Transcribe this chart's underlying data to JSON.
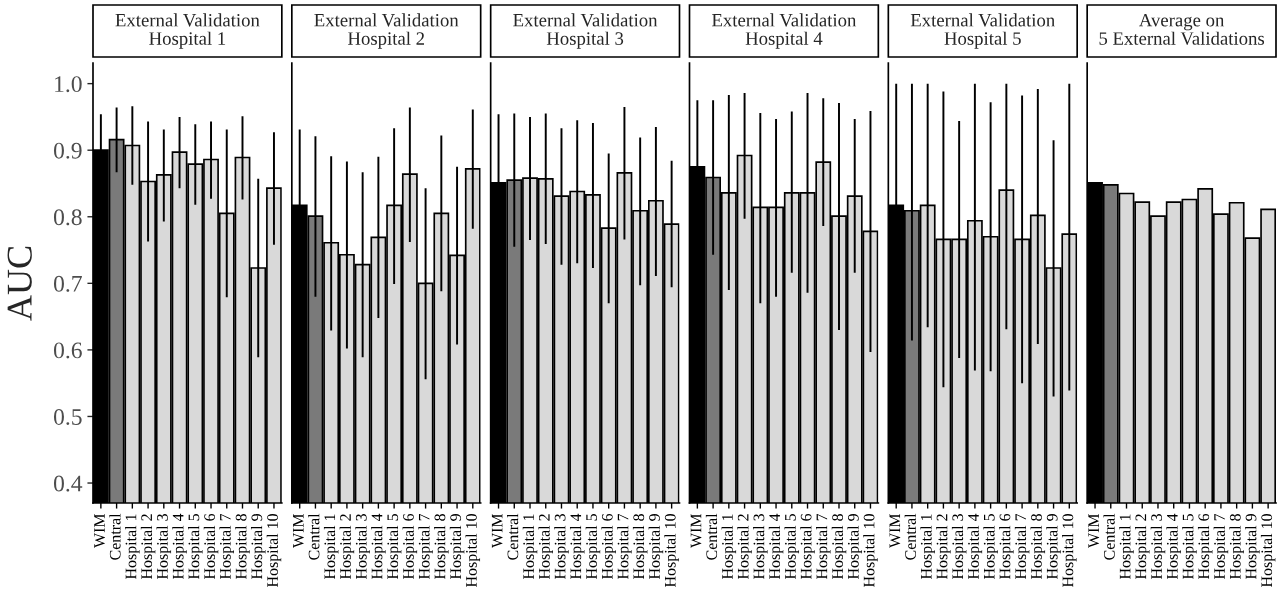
{
  "chart_data": [
    {
      "type": "bar",
      "title": "External Validation\nHospital 1",
      "ylabel": "AUC",
      "categories": [
        "WIM",
        "Central",
        "Hospital 1",
        "Hospital 2",
        "Hospital 3",
        "Hospital 4",
        "Hospital 5",
        "Hospital 6",
        "Hospital 7",
        "Hospital 8",
        "Hospital 9",
        "Hospital 10"
      ],
      "colors": [
        "#000000",
        "#7a7a7a",
        "#d9d9d9",
        "#d9d9d9",
        "#d9d9d9",
        "#d9d9d9",
        "#d9d9d9",
        "#d9d9d9",
        "#d9d9d9",
        "#d9d9d9",
        "#d9d9d9",
        "#d9d9d9"
      ],
      "values": [
        0.9,
        0.916,
        0.907,
        0.853,
        0.863,
        0.897,
        0.879,
        0.886,
        0.805,
        0.889,
        0.723,
        0.843
      ],
      "errors": [
        [
          0.9,
          0.954
        ],
        [
          0.867,
          0.964
        ],
        [
          0.848,
          0.966
        ],
        [
          0.763,
          0.943
        ],
        [
          0.793,
          0.931
        ],
        [
          0.843,
          0.95
        ],
        [
          0.818,
          0.939
        ],
        [
          0.827,
          0.943
        ],
        [
          0.679,
          0.931
        ],
        [
          0.826,
          0.951
        ],
        [
          0.589,
          0.857
        ],
        [
          0.758,
          0.927
        ]
      ],
      "ylim": [
        0.37,
        1.031
      ],
      "yticks": [
        {
          "value": 0.4,
          "label": "0.4"
        },
        {
          "value": 0.5,
          "label": "0.5"
        },
        {
          "value": 0.6,
          "label": "0.6"
        },
        {
          "value": 0.7,
          "label": "0.7"
        },
        {
          "value": 0.8,
          "label": "0.8"
        },
        {
          "value": 0.9,
          "label": "0.9"
        },
        {
          "value": 1.0,
          "label": "1.0"
        }
      ],
      "grid": false,
      "legend": false
    },
    {
      "type": "bar",
      "title": "External Validation\nHospital 2",
      "categories": [
        "WIM",
        "Central",
        "Hospital 1",
        "Hospital 2",
        "Hospital 3",
        "Hospital 4",
        "Hospital 5",
        "Hospital 6",
        "Hospital 7",
        "Hospital 8",
        "Hospital 9",
        "Hospital 10"
      ],
      "colors": [
        "#000000",
        "#7a7a7a",
        "#d9d9d9",
        "#d9d9d9",
        "#d9d9d9",
        "#d9d9d9",
        "#d9d9d9",
        "#d9d9d9",
        "#d9d9d9",
        "#d9d9d9",
        "#d9d9d9",
        "#d9d9d9"
      ],
      "values": [
        0.817,
        0.801,
        0.761,
        0.743,
        0.728,
        0.769,
        0.817,
        0.864,
        0.7,
        0.805,
        0.742,
        0.872
      ],
      "errors": [
        [
          0.817,
          0.931
        ],
        [
          0.68,
          0.921
        ],
        [
          0.629,
          0.891
        ],
        [
          0.602,
          0.883
        ],
        [
          0.589,
          0.867
        ],
        [
          0.648,
          0.89
        ],
        [
          0.699,
          0.933
        ],
        [
          0.762,
          0.964
        ],
        [
          0.556,
          0.843
        ],
        [
          0.688,
          0.922
        ],
        [
          0.608,
          0.875
        ],
        [
          0.782,
          0.961
        ]
      ],
      "ylim": [
        0.37,
        1.031
      ],
      "tick_labels": "x",
      "grid": false,
      "legend": false
    },
    {
      "type": "bar",
      "title": "External Validation\nHospital 3",
      "categories": [
        "WIM",
        "Central",
        "Hospital 1",
        "Hospital 2",
        "Hospital 3",
        "Hospital 4",
        "Hospital 5",
        "Hospital 6",
        "Hospital 7",
        "Hospital 8",
        "Hospital 9",
        "Hospital 10"
      ],
      "colors": [
        "#000000",
        "#7a7a7a",
        "#d9d9d9",
        "#d9d9d9",
        "#d9d9d9",
        "#d9d9d9",
        "#d9d9d9",
        "#d9d9d9",
        "#d9d9d9",
        "#d9d9d9",
        "#d9d9d9",
        "#d9d9d9"
      ],
      "values": [
        0.851,
        0.855,
        0.858,
        0.857,
        0.831,
        0.838,
        0.833,
        0.783,
        0.866,
        0.809,
        0.824,
        0.789
      ],
      "errors": [
        [
          0.851,
          0.954
        ],
        [
          0.755,
          0.955
        ],
        [
          0.765,
          0.95
        ],
        [
          0.759,
          0.955
        ],
        [
          0.728,
          0.933
        ],
        [
          0.73,
          0.945
        ],
        [
          0.723,
          0.941
        ],
        [
          0.67,
          0.895
        ],
        [
          0.766,
          0.965
        ],
        [
          0.697,
          0.919
        ],
        [
          0.711,
          0.935
        ],
        [
          0.694,
          0.884
        ]
      ],
      "ylim": [
        0.37,
        1.031
      ],
      "tick_labels": "x",
      "grid": false,
      "legend": false
    },
    {
      "type": "bar",
      "title": "External Validation\nHospital 4",
      "categories": [
        "WIM",
        "Central",
        "Hospital 1",
        "Hospital 2",
        "Hospital 3",
        "Hospital 4",
        "Hospital 5",
        "Hospital 6",
        "Hospital 7",
        "Hospital 8",
        "Hospital 9",
        "Hospital 10"
      ],
      "colors": [
        "#000000",
        "#7a7a7a",
        "#d9d9d9",
        "#d9d9d9",
        "#d9d9d9",
        "#d9d9d9",
        "#d9d9d9",
        "#d9d9d9",
        "#d9d9d9",
        "#d9d9d9",
        "#d9d9d9",
        "#d9d9d9"
      ],
      "values": [
        0.875,
        0.859,
        0.836,
        0.892,
        0.814,
        0.814,
        0.836,
        0.836,
        0.882,
        0.801,
        0.831,
        0.778
      ],
      "errors": [
        [
          0.875,
          0.975
        ],
        [
          0.743,
          0.975
        ],
        [
          0.69,
          0.983
        ],
        [
          0.797,
          0.986
        ],
        [
          0.67,
          0.956
        ],
        [
          0.68,
          0.947
        ],
        [
          0.716,
          0.958
        ],
        [
          0.686,
          0.986
        ],
        [
          0.786,
          0.978
        ],
        [
          0.63,
          0.971
        ],
        [
          0.716,
          0.947
        ],
        [
          0.597,
          0.959
        ]
      ],
      "ylim": [
        0.37,
        1.031
      ],
      "tick_labels": "x",
      "grid": false,
      "legend": false
    },
    {
      "type": "bar",
      "title": "External Validation\nHospital 5",
      "categories": [
        "WIM",
        "Central",
        "Hospital 1",
        "Hospital 2",
        "Hospital 3",
        "Hospital 4",
        "Hospital 5",
        "Hospital 6",
        "Hospital 7",
        "Hospital 8",
        "Hospital 9",
        "Hospital 10"
      ],
      "colors": [
        "#000000",
        "#7a7a7a",
        "#d9d9d9",
        "#d9d9d9",
        "#d9d9d9",
        "#d9d9d9",
        "#d9d9d9",
        "#d9d9d9",
        "#d9d9d9",
        "#d9d9d9",
        "#d9d9d9",
        "#d9d9d9"
      ],
      "values": [
        0.817,
        0.809,
        0.817,
        0.766,
        0.766,
        0.794,
        0.77,
        0.84,
        0.766,
        0.802,
        0.723,
        0.774
      ],
      "errors": [
        [
          0.817,
          1.0
        ],
        [
          0.614,
          1.0
        ],
        [
          0.634,
          1.0
        ],
        [
          0.544,
          0.988
        ],
        [
          0.588,
          0.944
        ],
        [
          0.569,
          1.0
        ],
        [
          0.568,
          0.972
        ],
        [
          0.631,
          1.0
        ],
        [
          0.55,
          0.982
        ],
        [
          0.609,
          0.992
        ],
        [
          0.53,
          0.915
        ],
        [
          0.539,
          1.0
        ]
      ],
      "ylim": [
        0.37,
        1.031
      ],
      "tick_labels": "x",
      "grid": false,
      "legend": false
    },
    {
      "type": "bar",
      "title": "Average on\n5 External Validations",
      "categories": [
        "WIM",
        "Central",
        "Hospital 1",
        "Hospital 2",
        "Hospital 3",
        "Hospital 4",
        "Hospital 5",
        "Hospital 6",
        "Hospital 7",
        "Hospital 8",
        "Hospital 9",
        "Hospital 10"
      ],
      "colors": [
        "#000000",
        "#7a7a7a",
        "#d9d9d9",
        "#d9d9d9",
        "#d9d9d9",
        "#d9d9d9",
        "#d9d9d9",
        "#d9d9d9",
        "#d9d9d9",
        "#d9d9d9",
        "#d9d9d9",
        "#d9d9d9"
      ],
      "values": [
        0.851,
        0.848,
        0.835,
        0.822,
        0.801,
        0.822,
        0.826,
        0.842,
        0.804,
        0.821,
        0.768,
        0.811
      ],
      "ylim": [
        0.37,
        1.031
      ],
      "tick_labels": "x",
      "grid": false,
      "legend": false
    }
  ]
}
